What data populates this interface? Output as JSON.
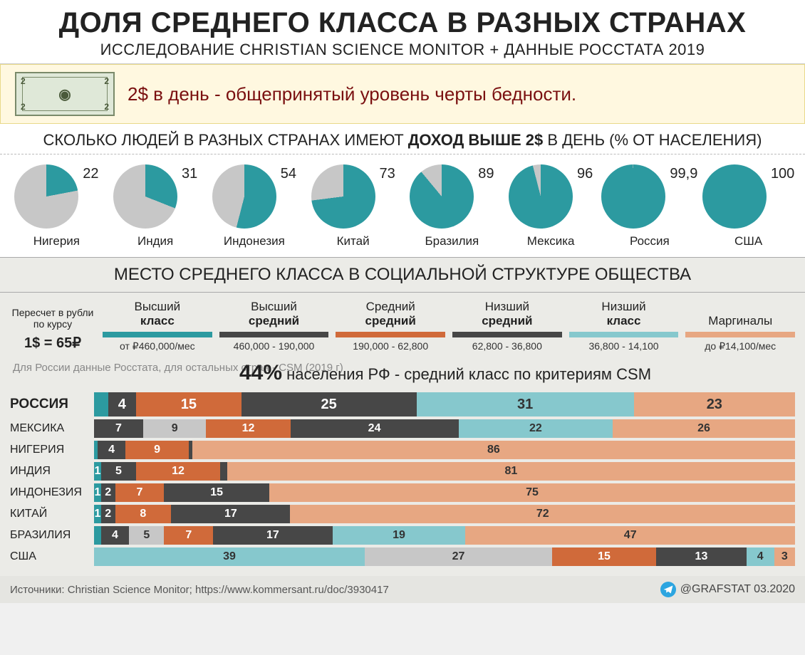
{
  "colors": {
    "teal": "#2c9aa0",
    "grey": "#c7c7c7",
    "dark": "#474747",
    "orange": "#d06a3a",
    "lightteal": "#86c8cd",
    "peach": "#e7a782"
  },
  "header": {
    "title": "ДОЛЯ СРЕДНЕГО КЛАССА В РАЗНЫХ СТРАНАХ",
    "subtitle": "ИССЛЕДОВАНИЕ CHRISTIAN SCIENCE MONITOR + ДАННЫЕ РОССТАТА 2019"
  },
  "poverty": {
    "denom": "2",
    "text": "2$ в день - общепринятый уровень черты бедности."
  },
  "pies": {
    "intro_pre": "СКОЛЬКО ЛЮДЕЙ В РАЗНЫХ СТРАНАХ ИМЕЮТ ",
    "intro_bold": "ДОХОД ВЫШЕ 2$",
    "intro_post": " В ДЕНЬ (% ОТ НАСЕЛЕНИЯ)",
    "fill_color": "#2c9aa0",
    "empty_color": "#c7c7c7",
    "items": [
      {
        "country": "Нигерия",
        "value": 22,
        "label": "22"
      },
      {
        "country": "Индия",
        "value": 31,
        "label": "31"
      },
      {
        "country": "Индонезия",
        "value": 54,
        "label": "54"
      },
      {
        "country": "Китай",
        "value": 73,
        "label": "73"
      },
      {
        "country": "Бразилия",
        "value": 89,
        "label": "89"
      },
      {
        "country": "Мексика",
        "value": 96,
        "label": "96"
      },
      {
        "country": "Россия",
        "value": 99.9,
        "label": "99,9"
      },
      {
        "country": "США",
        "value": 100,
        "label": "100"
      }
    ]
  },
  "section2_title": "МЕСТО СРЕДНЕГО КЛАССА В СОЦИАЛЬНОЙ СТРУКТУРЕ ОБЩЕСТВА",
  "rate": {
    "note": "Пересчет в рубли по курсу",
    "value": "1$ = 65₽"
  },
  "classes": [
    {
      "l1": "Высший",
      "l2": "класс",
      "color": "#2c9aa0",
      "range": "от ₽460,000/мес"
    },
    {
      "l1": "Высший",
      "l2": "средний",
      "color": "#474747",
      "range": "460,000 - 190,000"
    },
    {
      "l1": "Средний",
      "l2": "средний",
      "color": "#d06a3a",
      "range": "190,000 - 62,800"
    },
    {
      "l1": "Низший",
      "l2": "средний",
      "color": "#474747",
      "range": "62,800 - 36,800"
    },
    {
      "l1": "Низший",
      "l2": "класс",
      "color": "#86c8cd",
      "range": "36,800 - 14,100"
    },
    {
      "l1": "Маргиналы",
      "l2": "",
      "color": "#e7a782",
      "range": "до ₽14,100/мес"
    }
  ],
  "data_note": "Для России данные Росстата, для остальных стран - CSM (2019 г)",
  "pct_line": {
    "big": "44%",
    "rest": " населения РФ - средний класс по критериям CSM"
  },
  "bar_colors": [
    "#2c9aa0",
    "#474747",
    "#d06a3a",
    "#474747",
    "#86c8cd",
    "#e7a782"
  ],
  "bars": [
    {
      "country": "РОССИЯ",
      "highlight": true,
      "segs": [
        {
          "v": 2,
          "l": ""
        },
        {
          "v": 4,
          "l": "4"
        },
        {
          "v": 15,
          "l": "15"
        },
        {
          "v": 25,
          "l": "25"
        },
        {
          "v": 31,
          "l": "31"
        },
        {
          "v": 23,
          "l": "23"
        }
      ]
    },
    {
      "country": "МЕКСИКА",
      "highlight": false,
      "segs": [
        {
          "v": 0,
          "l": ""
        },
        {
          "v": 7,
          "l": "7"
        },
        {
          "v": 9,
          "l": "9"
        },
        {
          "v": 12,
          "l": "12"
        },
        {
          "v": 24,
          "l": "24"
        },
        {
          "v": 22,
          "l": "22"
        },
        {
          "v": 26,
          "l": "26"
        }
      ],
      "special": true
    },
    {
      "country": "НИГЕРИЯ",
      "highlight": false,
      "segs": [
        {
          "v": 0.5,
          "l": ""
        },
        {
          "v": 4,
          "l": "4"
        },
        {
          "v": 9,
          "l": "9"
        },
        {
          "v": 0.5,
          "l": ""
        },
        {
          "v": 0,
          "l": ""
        },
        {
          "v": 86,
          "l": "86"
        }
      ]
    },
    {
      "country": "ИНДИЯ",
      "highlight": false,
      "segs": [
        {
          "v": 1,
          "l": "1"
        },
        {
          "v": 5,
          "l": "5"
        },
        {
          "v": 12,
          "l": "12"
        },
        {
          "v": 1,
          "l": ""
        },
        {
          "v": 0,
          "l": ""
        },
        {
          "v": 81,
          "l": "81"
        }
      ]
    },
    {
      "country": "ИНДОНЕЗИЯ",
      "highlight": false,
      "segs": [
        {
          "v": 1,
          "l": "1"
        },
        {
          "v": 2,
          "l": "2"
        },
        {
          "v": 7,
          "l": "7"
        },
        {
          "v": 15,
          "l": "15"
        },
        {
          "v": 0,
          "l": ""
        },
        {
          "v": 75,
          "l": "75"
        }
      ]
    },
    {
      "country": "КИТАЙ",
      "highlight": false,
      "segs": [
        {
          "v": 1,
          "l": "1"
        },
        {
          "v": 2,
          "l": "2"
        },
        {
          "v": 8,
          "l": "8"
        },
        {
          "v": 17,
          "l": "17"
        },
        {
          "v": 0,
          "l": ""
        },
        {
          "v": 72,
          "l": "72"
        }
      ]
    },
    {
      "country": "БРАЗИЛИЯ",
      "highlight": false,
      "segs": [
        {
          "v": 1,
          "l": ""
        },
        {
          "v": 4,
          "l": "4"
        },
        {
          "v": 5,
          "l": "5"
        },
        {
          "v": 7,
          "l": "7"
        },
        {
          "v": 17,
          "l": "17"
        },
        {
          "v": 19,
          "l": "19"
        },
        {
          "v": 47,
          "l": "47"
        }
      ],
      "special": true
    },
    {
      "country": "США",
      "highlight": false,
      "segs": [
        {
          "v": 0,
          "l": ""
        },
        {
          "v": 39,
          "l": "39"
        },
        {
          "v": 27,
          "l": "27"
        },
        {
          "v": 15,
          "l": "15"
        },
        {
          "v": 13,
          "l": "13"
        },
        {
          "v": 4,
          "l": "4"
        },
        {
          "v": 3,
          "l": "3"
        }
      ],
      "special_usa": true
    }
  ],
  "footer": {
    "source": "Источники: Christian Science Monitor; https://www.kommersant.ru/doc/3930417",
    "brand": "@GRAFSTAT 03.2020"
  }
}
